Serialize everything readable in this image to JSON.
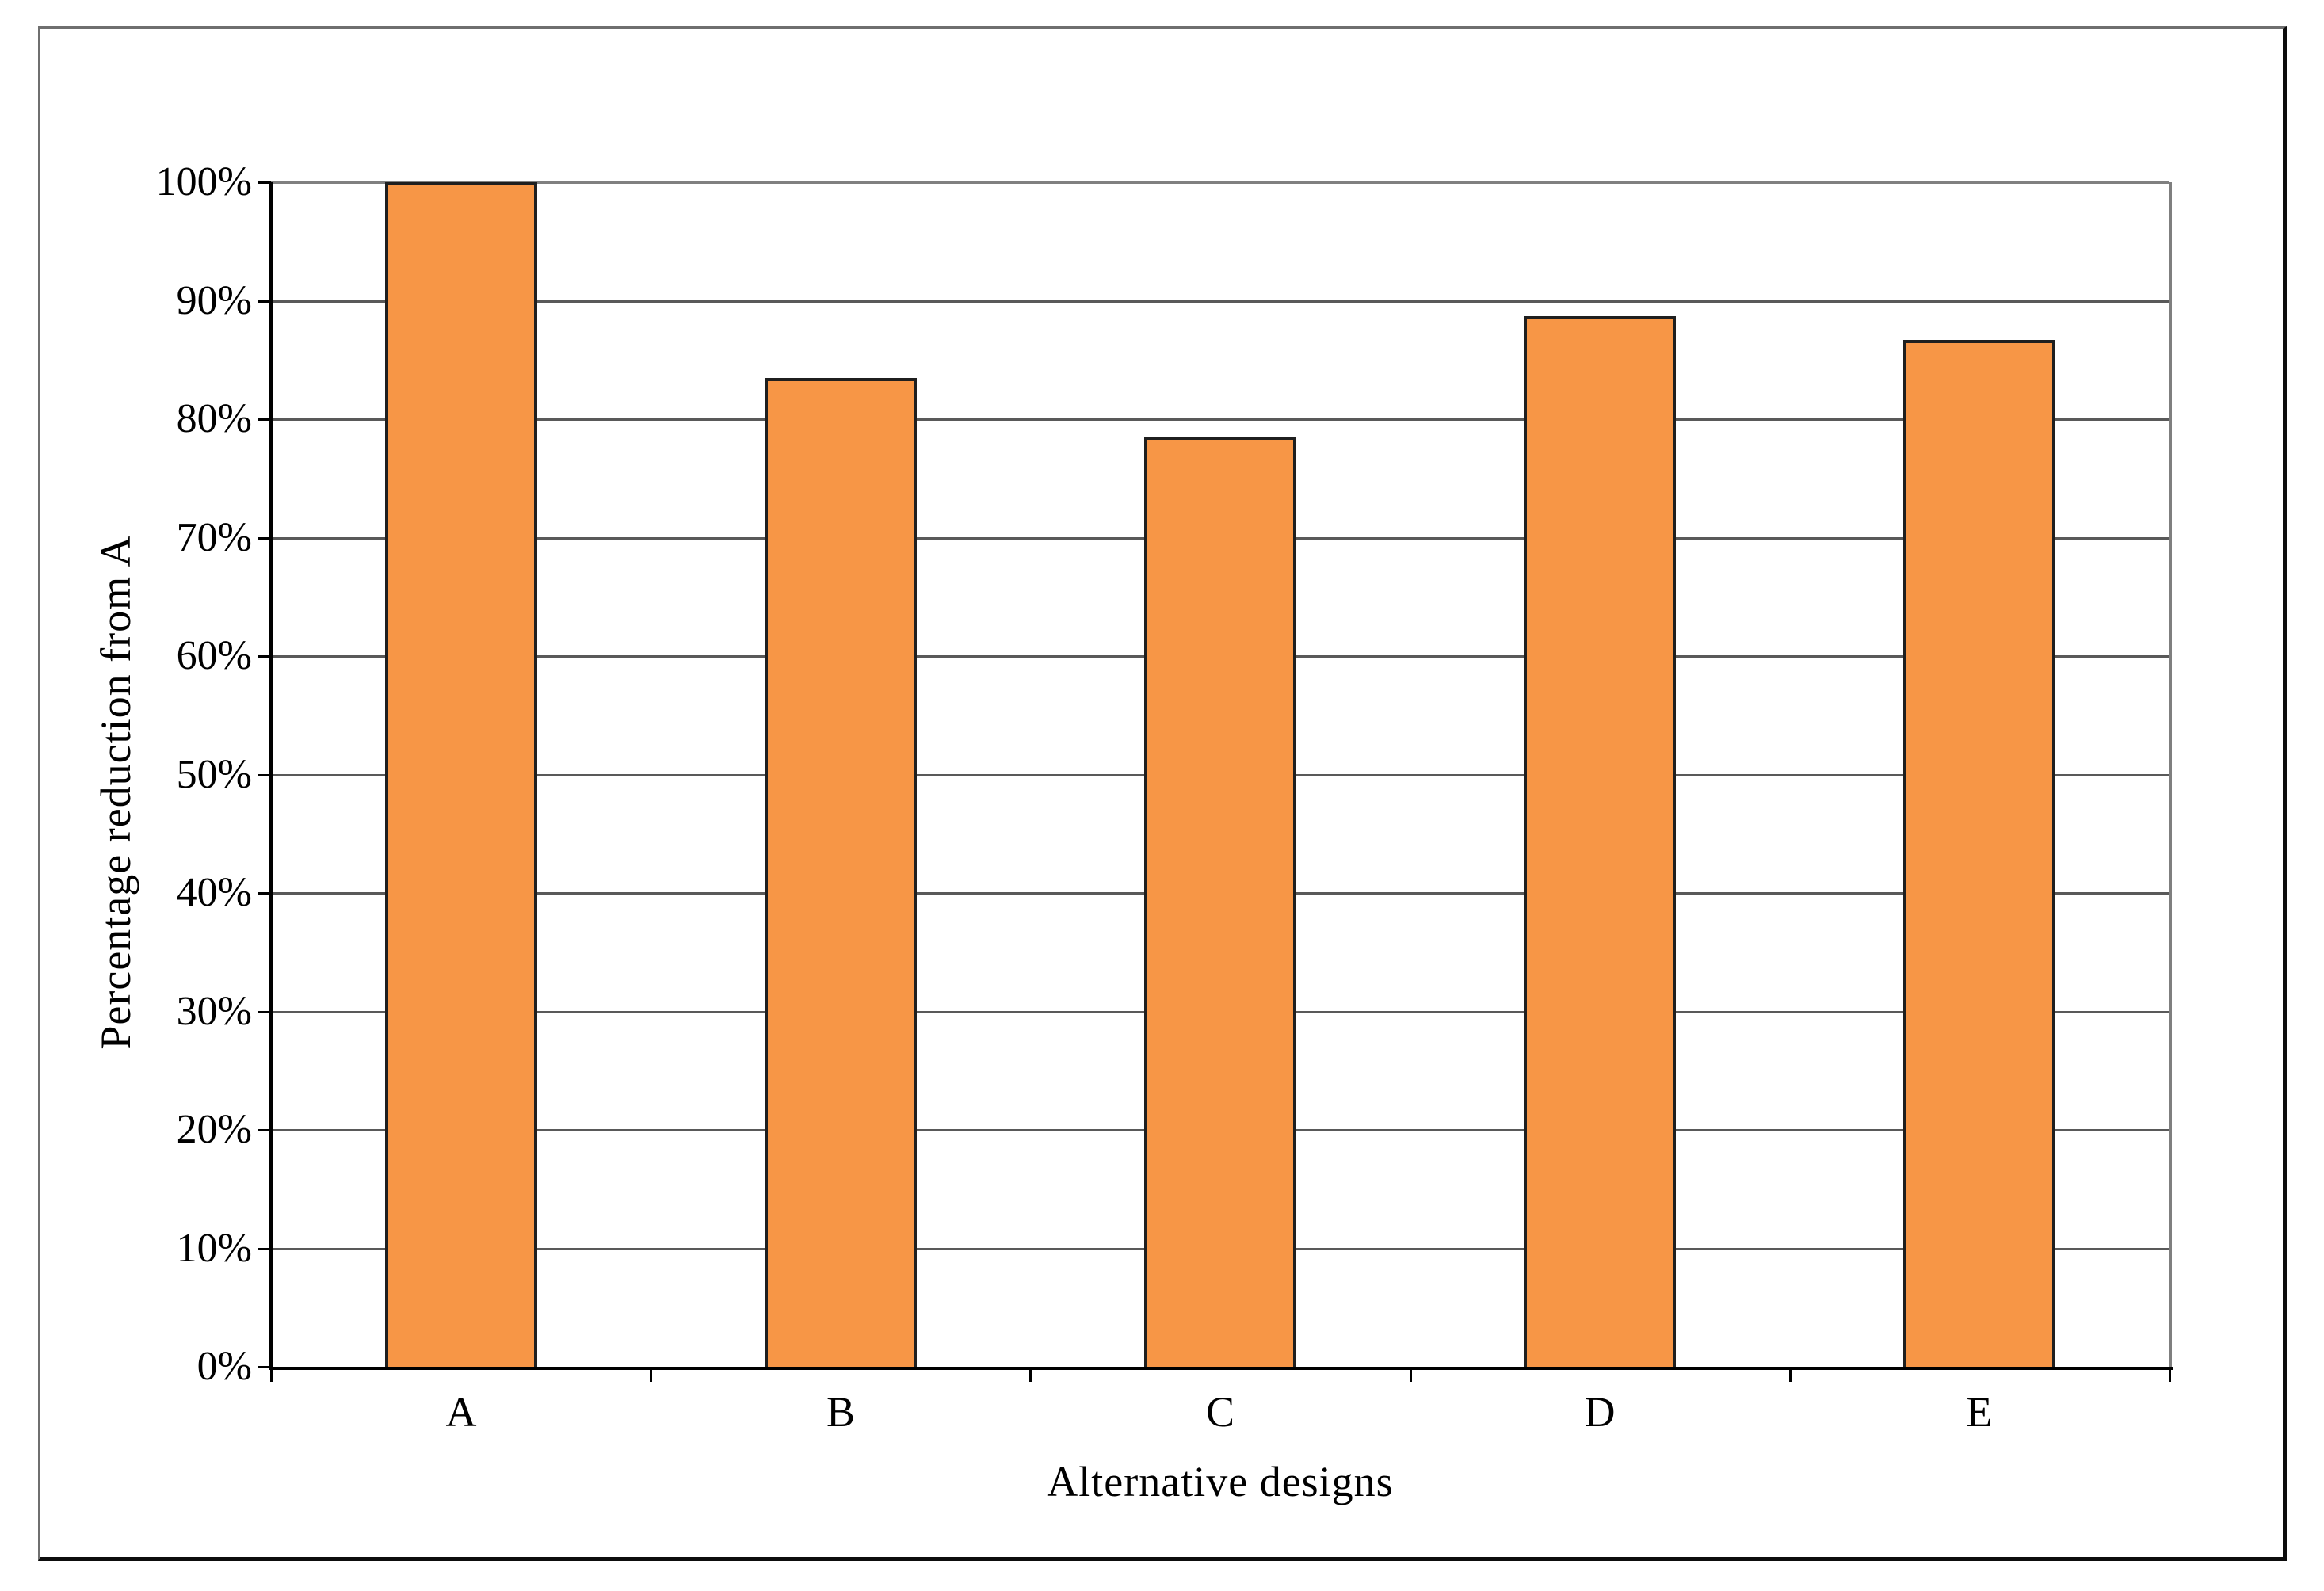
{
  "window": {
    "background": "#ffffff",
    "border_color_light": "#6f6f6f",
    "border_color_dark": "#0d0d0d"
  },
  "chart_data": {
    "type": "bar",
    "title": "",
    "categories": [
      "A",
      "B",
      "C",
      "D",
      "E"
    ],
    "values": [
      100,
      83.5,
      78.5,
      88.7,
      86.7
    ],
    "xlabel": "Alternative designs",
    "ylabel": "Percentage reduction from A",
    "ylim": [
      0,
      100
    ],
    "ytick_step": 10,
    "ytick_labels": [
      "0%",
      "10%",
      "20%",
      "30%",
      "40%",
      "50%",
      "60%",
      "70%",
      "80%",
      "90%",
      "100%"
    ],
    "grid": true,
    "legend": false,
    "bar_color": "#F79646",
    "bar_border_color": "#1f1f1f",
    "gridline_color": "#595959",
    "top_gridline_color": "#808080",
    "axis_color": "#000000"
  }
}
